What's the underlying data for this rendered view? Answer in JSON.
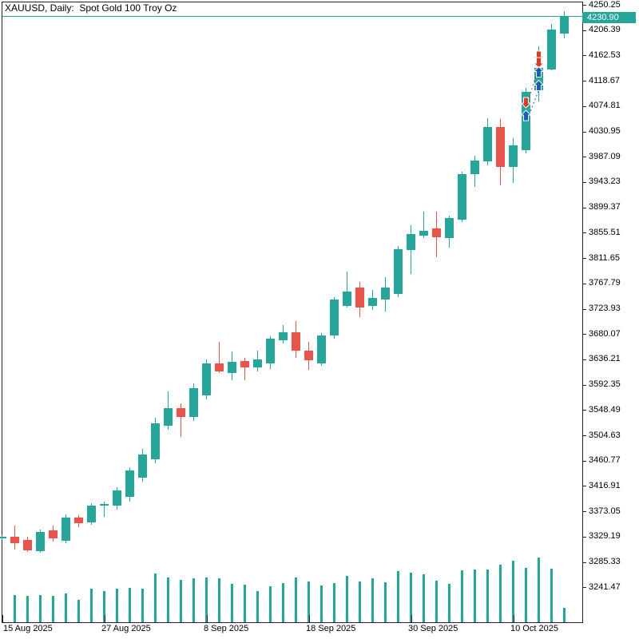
{
  "window": {
    "title": "XAUUSD, Daily:  Spot Gold 100 Troy Oz"
  },
  "chart_data": {
    "type": "candlestick",
    "symbol": "XAUUSD",
    "timeframe": "Daily",
    "description": "Spot Gold 100 Troy Oz",
    "current_price": 4230.9,
    "current_price_label": "4230.90",
    "legend_position": "none",
    "grid": false,
    "y_axis": {
      "side": "right",
      "max": 4250.25,
      "min": 3241.47,
      "tick_step": 43.86,
      "ticks": [
        "4250.25",
        "4206.39",
        "4162.53",
        "4118.67",
        "4074.81",
        "4030.95",
        "3987.09",
        "3943.23",
        "3899.37",
        "3855.51",
        "3811.65",
        "3767.79",
        "3723.93",
        "3680.07",
        "3636.21",
        "3592.35",
        "3548.49",
        "3504.63",
        "3460.77",
        "3416.91",
        "3373.05",
        "3329.19",
        "3285.33",
        "3241.47"
      ]
    },
    "x_axis": {
      "ticks": [
        {
          "label": "15 Aug 2025",
          "candle_index": 0
        },
        {
          "label": "27 Aug 2025",
          "candle_index": 8
        },
        {
          "label": "8 Sep 2025",
          "candle_index": 16
        },
        {
          "label": "18 Sep 2025",
          "candle_index": 24
        },
        {
          "label": "30 Sep 2025",
          "candle_index": 32
        },
        {
          "label": "10 Oct 2025",
          "candle_index": 40
        }
      ]
    },
    "candles_ohlcv": [
      [
        3325.9,
        3331.5,
        3323.2,
        3328.7,
        0
      ],
      [
        3328.7,
        3348.1,
        3306.6,
        3317.6,
        34
      ],
      [
        3323.2,
        3328.7,
        3302.4,
        3305.2,
        33
      ],
      [
        3303.8,
        3341.2,
        3301.0,
        3337.0,
        34
      ],
      [
        3339.8,
        3348.1,
        3320.4,
        3325.9,
        33
      ],
      [
        3321.8,
        3367.4,
        3317.6,
        3361.9,
        36
      ],
      [
        3361.9,
        3366.1,
        3345.3,
        3352.3,
        28
      ],
      [
        3353.6,
        3386.8,
        3349.5,
        3382.7,
        42
      ],
      [
        3384.1,
        3389.6,
        3363.3,
        3385.5,
        39
      ],
      [
        3382.7,
        3414.5,
        3375.8,
        3409.0,
        42
      ],
      [
        3397.9,
        3449.1,
        3389.6,
        3443.6,
        43
      ],
      [
        3431.1,
        3481.0,
        3424.2,
        3471.3,
        42
      ],
      [
        3462.9,
        3534.9,
        3456.0,
        3525.2,
        61
      ],
      [
        3521.0,
        3580.5,
        3514.1,
        3551.5,
        56
      ],
      [
        3551.5,
        3559.8,
        3501.6,
        3536.2,
        53
      ],
      [
        3536.2,
        3594.3,
        3529.3,
        3586.0,
        55
      ],
      [
        3573.6,
        3635.8,
        3566.7,
        3628.9,
        56
      ],
      [
        3628.9,
        3666.3,
        3612.3,
        3615.1,
        55
      ],
      [
        3612.3,
        3649.7,
        3599.9,
        3631.7,
        48
      ],
      [
        3633.1,
        3638.6,
        3599.9,
        3622.0,
        47
      ],
      [
        3622.0,
        3651.1,
        3615.1,
        3635.9,
        39
      ],
      [
        3628.9,
        3676.0,
        3619.3,
        3671.9,
        45
      ],
      [
        3669.1,
        3695.4,
        3663.6,
        3683.0,
        49
      ],
      [
        3683.0,
        3702.3,
        3638.6,
        3651.1,
        56
      ],
      [
        3651.1,
        3666.3,
        3617.9,
        3634.5,
        51
      ],
      [
        3628.9,
        3681.6,
        3624.8,
        3677.4,
        46
      ],
      [
        3677.4,
        3743.8,
        3671.9,
        3739.7,
        49
      ],
      [
        3728.6,
        3788.1,
        3725.8,
        3753.5,
        58
      ],
      [
        3760.4,
        3770.1,
        3709.2,
        3725.8,
        51
      ],
      [
        3728.6,
        3756.3,
        3721.7,
        3742.4,
        55
      ],
      [
        3739.7,
        3778.4,
        3718.9,
        3760.4,
        50
      ],
      [
        3749.4,
        3832.4,
        3743.8,
        3826.9,
        64
      ],
      [
        3825.5,
        3868.4,
        3784.0,
        3853.2,
        62
      ],
      [
        3850.4,
        3891.9,
        3846.2,
        3858.7,
        60
      ],
      [
        3862.8,
        3891.9,
        3813.0,
        3847.6,
        52
      ],
      [
        3846.2,
        3884.9,
        3829.6,
        3880.8,
        48
      ],
      [
        3878.0,
        3961.0,
        3873.9,
        3956.9,
        65
      ],
      [
        3956.9,
        3988.7,
        3934.7,
        3980.4,
        66
      ],
      [
        3979.0,
        4053.7,
        3972.1,
        4038.5,
        66
      ],
      [
        4038.5,
        4052.3,
        3937.5,
        3969.3,
        72
      ],
      [
        3969.3,
        4019.2,
        3941.6,
        4006.7,
        77
      ],
      [
        3998.4,
        4106.3,
        3992.9,
        4099.4,
        68
      ],
      [
        4102.2,
        4178.3,
        4082.8,
        4140.9,
        81
      ],
      [
        4138.2,
        4217.0,
        4136.8,
        4207.4,
        67
      ],
      [
        4200.4,
        4239.2,
        4192.1,
        4230.9,
        18
      ]
    ],
    "markers": [
      {
        "candle_index": 41,
        "type": "sell",
        "price": 4081.4
      },
      {
        "candle_index": 41,
        "type": "buy",
        "price": 4057.9
      },
      {
        "candle_index": 42,
        "type": "sell",
        "price": 4161.7
      },
      {
        "candle_index": 42,
        "type": "sell",
        "price": 4150.6
      },
      {
        "candle_index": 42,
        "type": "buy",
        "price": 4133.3
      },
      {
        "candle_index": 42,
        "type": "buy",
        "price": 4109.8
      }
    ],
    "trade_connectors": [
      {
        "from_candle": 41,
        "from_price": 4070.3,
        "to_candle": 42,
        "to_price": 4145.0,
        "kind": "sell"
      },
      {
        "from_candle": 41,
        "from_price": 4046.9,
        "to_candle": 42,
        "to_price": 4102.2,
        "kind": "buy"
      }
    ]
  },
  "colors": {
    "bull": "#26a69a",
    "bear": "#e8544c",
    "volume": "#26a69a",
    "price_line": "#26a69a",
    "badge_bg": "#26a69a",
    "badge_text": "#ffffff",
    "buy_marker": "#1e5cb3",
    "sell_marker": "#d43e26",
    "border": "#222222",
    "text": "#000000",
    "background": "#ffffff"
  }
}
